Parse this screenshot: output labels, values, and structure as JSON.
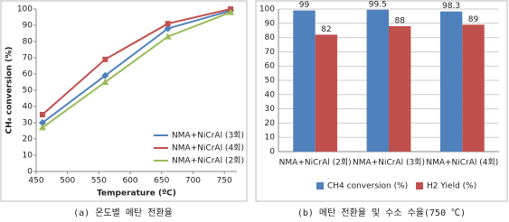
{
  "chart_data": [
    {
      "type": "line",
      "caption": "(a) 온도별 메탄 전환율",
      "xlabel": "Temperature (ºC)",
      "ylabel": "CH₄ conversion (%)",
      "x": [
        460,
        560,
        660,
        760
      ],
      "series": [
        {
          "name": "NMA+NiCrAl (3회)",
          "color": "#4f81bd",
          "marker": "diamond",
          "values": [
            30,
            59,
            88,
            99
          ]
        },
        {
          "name": "NMA+NiCrAl (4회)",
          "color": "#c0504d",
          "marker": "square",
          "values": [
            35,
            69,
            91,
            100
          ]
        },
        {
          "name": "NMA+NiCrAl (2회)",
          "color": "#9bbb59",
          "marker": "triangle",
          "values": [
            27,
            55,
            83,
            98
          ]
        }
      ],
      "xlim": [
        450,
        770
      ],
      "xticks": [
        450,
        500,
        550,
        600,
        650,
        700,
        750
      ],
      "ylim": [
        0,
        100
      ],
      "yticks": [
        0,
        10,
        20,
        30,
        40,
        50,
        60,
        70,
        80,
        90,
        100
      ],
      "grid": false,
      "legend": "lower right"
    },
    {
      "type": "bar",
      "caption": "(b) 메탄 전환율 및 수소 수율(750 ℃)",
      "categories": [
        "NMA+NiCrAl (2회)",
        "NMA+NiCrAl (3회)",
        "NMA+NiCrAl (4회)"
      ],
      "series": [
        {
          "name": "CH4 conversion (%)",
          "color": "#4f81bd",
          "values": [
            99,
            99.5,
            98.3
          ]
        },
        {
          "name": "H2 Yield (%)",
          "color": "#c0504d",
          "values": [
            82,
            88,
            89
          ]
        }
      ],
      "ylim": [
        0,
        100
      ],
      "yticks": [
        0,
        10,
        20,
        30,
        40,
        50,
        60,
        70,
        80,
        90,
        100
      ],
      "grid": true,
      "legend": "bottom"
    }
  ]
}
